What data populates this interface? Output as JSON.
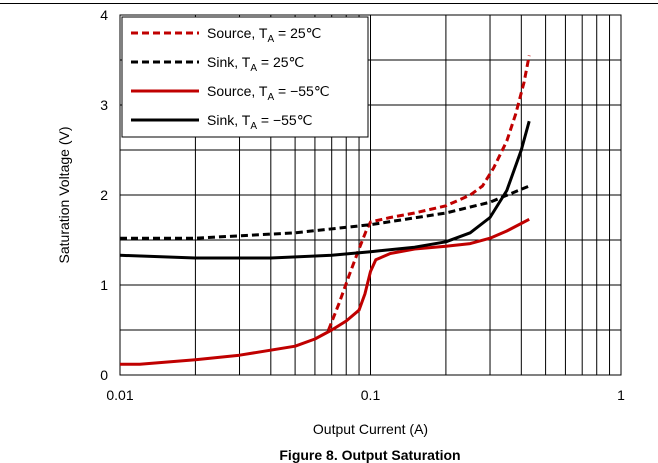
{
  "chart_data": {
    "type": "line",
    "xlabel": "Output Current (A)",
    "ylabel": "Saturation Voltage (V)",
    "x_scale": "log",
    "xlim": [
      0.01,
      1
    ],
    "ylim": [
      0,
      4
    ],
    "x_tick_labels": [
      "0.01",
      "0.1",
      "1"
    ],
    "y_tick_labels": [
      "0",
      "1",
      "2",
      "3",
      "4"
    ],
    "grid": true,
    "legend_position": "top-left",
    "series": [
      {
        "name_main": "Source, T",
        "name_sub": "A",
        "name_tail": " = 25℃",
        "color": "#c00000",
        "dash": "dashed",
        "points": [
          [
            0.068,
            0.5
          ],
          [
            0.075,
            0.8
          ],
          [
            0.082,
            1.1
          ],
          [
            0.09,
            1.4
          ],
          [
            0.096,
            1.6
          ],
          [
            0.1,
            1.7
          ],
          [
            0.12,
            1.75
          ],
          [
            0.15,
            1.8
          ],
          [
            0.2,
            1.88
          ],
          [
            0.25,
            2.0
          ],
          [
            0.28,
            2.1
          ],
          [
            0.31,
            2.3
          ],
          [
            0.35,
            2.6
          ],
          [
            0.38,
            2.9
          ],
          [
            0.41,
            3.25
          ],
          [
            0.43,
            3.55
          ]
        ]
      },
      {
        "name_main": "Sink, T",
        "name_sub": "A",
        "name_tail": " = 25℃",
        "color": "#000000",
        "dash": "dashed",
        "points": [
          [
            0.01,
            1.52
          ],
          [
            0.02,
            1.52
          ],
          [
            0.05,
            1.58
          ],
          [
            0.1,
            1.67
          ],
          [
            0.2,
            1.8
          ],
          [
            0.3,
            1.92
          ],
          [
            0.43,
            2.1
          ]
        ]
      },
      {
        "name_main": "Source, T",
        "name_sub": "A",
        "name_tail": " = −55℃",
        "color": "#c00000",
        "dash": "solid",
        "points": [
          [
            0.01,
            0.12
          ],
          [
            0.012,
            0.12
          ],
          [
            0.02,
            0.17
          ],
          [
            0.03,
            0.22
          ],
          [
            0.05,
            0.32
          ],
          [
            0.06,
            0.4
          ],
          [
            0.07,
            0.5
          ],
          [
            0.08,
            0.6
          ],
          [
            0.09,
            0.72
          ],
          [
            0.095,
            0.9
          ],
          [
            0.1,
            1.15
          ],
          [
            0.105,
            1.28
          ],
          [
            0.12,
            1.35
          ],
          [
            0.15,
            1.4
          ],
          [
            0.2,
            1.43
          ],
          [
            0.25,
            1.46
          ],
          [
            0.3,
            1.52
          ],
          [
            0.35,
            1.6
          ],
          [
            0.43,
            1.73
          ]
        ]
      },
      {
        "name_main": "Sink, T",
        "name_sub": "A",
        "name_tail": " = −55℃",
        "color": "#000000",
        "dash": "solid",
        "points": [
          [
            0.01,
            1.33
          ],
          [
            0.02,
            1.3
          ],
          [
            0.04,
            1.3
          ],
          [
            0.07,
            1.33
          ],
          [
            0.1,
            1.37
          ],
          [
            0.15,
            1.42
          ],
          [
            0.2,
            1.48
          ],
          [
            0.25,
            1.58
          ],
          [
            0.3,
            1.75
          ],
          [
            0.35,
            2.05
          ],
          [
            0.4,
            2.5
          ],
          [
            0.43,
            2.82
          ]
        ]
      }
    ],
    "caption": "Figure 8. Output Saturation"
  }
}
